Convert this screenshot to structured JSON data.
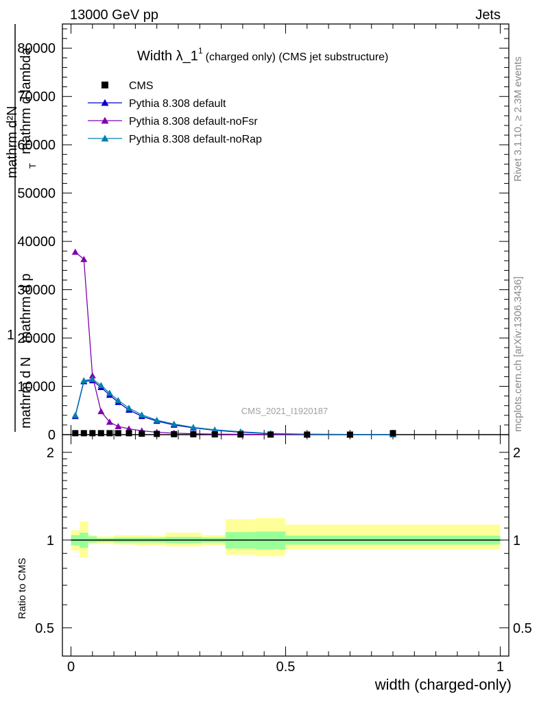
{
  "header": {
    "left": "13000 GeV pp",
    "right": "Jets"
  },
  "side_texts": {
    "rivet": "Rivet 3.1.10, ≥ 2.3M events",
    "mcplots": "mcplots.cern.ch [arXiv:1306.3436]"
  },
  "watermark": "CMS_2021_I1920187",
  "chart_data": [
    {
      "type": "line",
      "title_main": "Width λ_1",
      "title_sup": "1",
      "title_rest": "(charged only) (CMS jet substructure)",
      "xlabel": "width (charged-only)",
      "ylabel_numerator": "1",
      "ylabel_denominator": "mathrm d N",
      "ylabel_rhs_top": "mathrm d²N",
      "ylabel_rhs_mid": "mathrm d p",
      "ylabel_rhs_sub": "T",
      "ylabel_rhs_end": "mathrm d lambda",
      "xlim": [
        -0.02,
        1.02
      ],
      "ylim": [
        0,
        85000
      ],
      "y_ticks": [
        0,
        10000,
        20000,
        30000,
        40000,
        50000,
        60000,
        70000,
        80000
      ],
      "y_tick_labels": [
        "0",
        "10000",
        "20000",
        "30000",
        "40000",
        "50000",
        "60000",
        "70000",
        "80000"
      ],
      "legend_position": "top-left",
      "legend": [
        {
          "label": "CMS",
          "color": "#000000",
          "marker": "square"
        },
        {
          "label": "Pythia 8.308 default",
          "color": "#0000cc",
          "marker": "triangle"
        },
        {
          "label": "Pythia 8.308 default-noFsr",
          "color": "#8000b0",
          "marker": "triangle"
        },
        {
          "label": "Pythia 8.308 default-noRap",
          "color": "#0080b0",
          "marker": "triangle"
        }
      ],
      "x": [
        0.01,
        0.03,
        0.05,
        0.07,
        0.09,
        0.11,
        0.135,
        0.165,
        0.2,
        0.24,
        0.285,
        0.335,
        0.395,
        0.465,
        0.55,
        0.65,
        0.75
      ],
      "series": [
        {
          "name": "CMS",
          "color": "#000000",
          "values": [
            300,
            300,
            300,
            300,
            300,
            300,
            300,
            200,
            150,
            100,
            80,
            60,
            40,
            20,
            10,
            5,
            300
          ]
        },
        {
          "name": "Pythia 8.308 default",
          "color": "#0000cc",
          "values": [
            3800,
            11000,
            11200,
            9800,
            8200,
            6700,
            5100,
            3800,
            2800,
            2000,
            1400,
            900,
            500,
            200,
            80,
            30,
            10
          ]
        },
        {
          "name": "Pythia 8.308 default-noFsr",
          "color": "#8000b0",
          "values": [
            37800,
            36300,
            12200,
            4800,
            2600,
            1700,
            1200,
            800,
            500,
            300,
            200,
            100,
            60,
            30,
            10,
            5,
            2
          ]
        },
        {
          "name": "Pythia 8.308 default-noRap",
          "color": "#0080b0",
          "values": [
            4000,
            11200,
            11500,
            10200,
            8600,
            7100,
            5500,
            4100,
            3000,
            2200,
            1500,
            1000,
            600,
            250,
            100,
            40,
            10
          ]
        }
      ]
    },
    {
      "type": "area",
      "ylabel": "Ratio to CMS",
      "xlabel": "width (charged-only)",
      "ylim": [
        0.4,
        2.3
      ],
      "y_ticks": [
        0.5,
        1,
        2
      ],
      "y_tick_labels": [
        "0.5",
        "1",
        "2"
      ],
      "x_ticks": [
        0,
        0.5,
        1
      ],
      "x_tick_labels": [
        "0",
        "0.5",
        "1"
      ],
      "band_colors": {
        "outer": "#ffff99",
        "inner": "#99ff99",
        "line": "#000000"
      },
      "bins": [
        {
          "x0": 0.0,
          "x1": 0.02,
          "inner": [
            0.96,
            1.04
          ],
          "outer": [
            0.92,
            1.08
          ]
        },
        {
          "x0": 0.02,
          "x1": 0.04,
          "inner": [
            0.94,
            1.06
          ],
          "outer": [
            0.87,
            1.16
          ]
        },
        {
          "x0": 0.04,
          "x1": 0.06,
          "inner": [
            0.98,
            1.03
          ],
          "outer": [
            0.97,
            1.04
          ]
        },
        {
          "x0": 0.06,
          "x1": 0.1,
          "inner": [
            0.985,
            1.015
          ],
          "outer": [
            0.97,
            1.03
          ]
        },
        {
          "x0": 0.1,
          "x1": 0.15,
          "inner": [
            0.98,
            1.02
          ],
          "outer": [
            0.965,
            1.04
          ]
        },
        {
          "x0": 0.15,
          "x1": 0.185,
          "inner": [
            0.98,
            1.02
          ],
          "outer": [
            0.955,
            1.04
          ]
        },
        {
          "x0": 0.185,
          "x1": 0.22,
          "inner": [
            0.98,
            1.02
          ],
          "outer": [
            0.96,
            1.035
          ]
        },
        {
          "x0": 0.22,
          "x1": 0.305,
          "inner": [
            0.975,
            1.025
          ],
          "outer": [
            0.95,
            1.06
          ]
        },
        {
          "x0": 0.305,
          "x1": 0.36,
          "inner": [
            0.98,
            1.02
          ],
          "outer": [
            0.96,
            1.04
          ]
        },
        {
          "x0": 0.36,
          "x1": 0.43,
          "inner": [
            0.935,
            1.065
          ],
          "outer": [
            0.89,
            1.18
          ]
        },
        {
          "x0": 0.43,
          "x1": 0.5,
          "inner": [
            0.93,
            1.07
          ],
          "outer": [
            0.88,
            1.19
          ]
        },
        {
          "x0": 0.5,
          "x1": 1.0,
          "inner": [
            0.965,
            1.035
          ],
          "outer": [
            0.93,
            1.13
          ]
        }
      ]
    }
  ]
}
